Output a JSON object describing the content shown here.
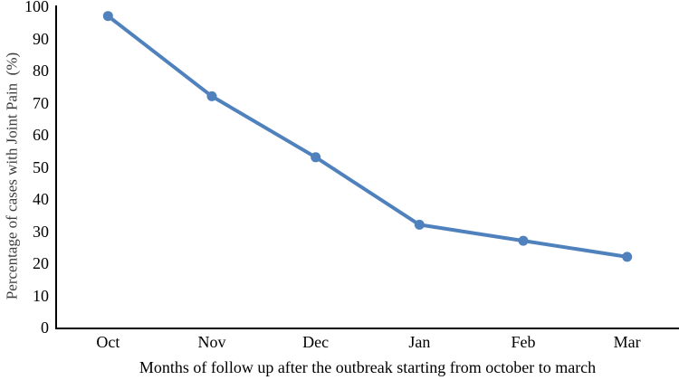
{
  "chart_data": {
    "type": "line",
    "title": "",
    "categories": [
      "Oct",
      "Nov",
      "Dec",
      "Jan",
      "Feb",
      "Mar"
    ],
    "series": [
      {
        "name": "Percentage of cases with Joint Pain",
        "values": [
          97,
          72,
          53,
          32,
          27,
          22
        ]
      }
    ],
    "xlabel": "Months of follow up after the outbreak starting from october to march",
    "ylabel": "Percentage of cases with Joint Pain  (%)",
    "ylim": [
      0,
      100
    ],
    "yticks": [
      0,
      10,
      20,
      30,
      40,
      50,
      60,
      70,
      80,
      90,
      100
    ],
    "grid": false,
    "legend": "none",
    "line_color": "#4F81BD",
    "marker": "circle",
    "marker_radius": 5.5,
    "line_width": 4,
    "axis_color": "#000000"
  }
}
